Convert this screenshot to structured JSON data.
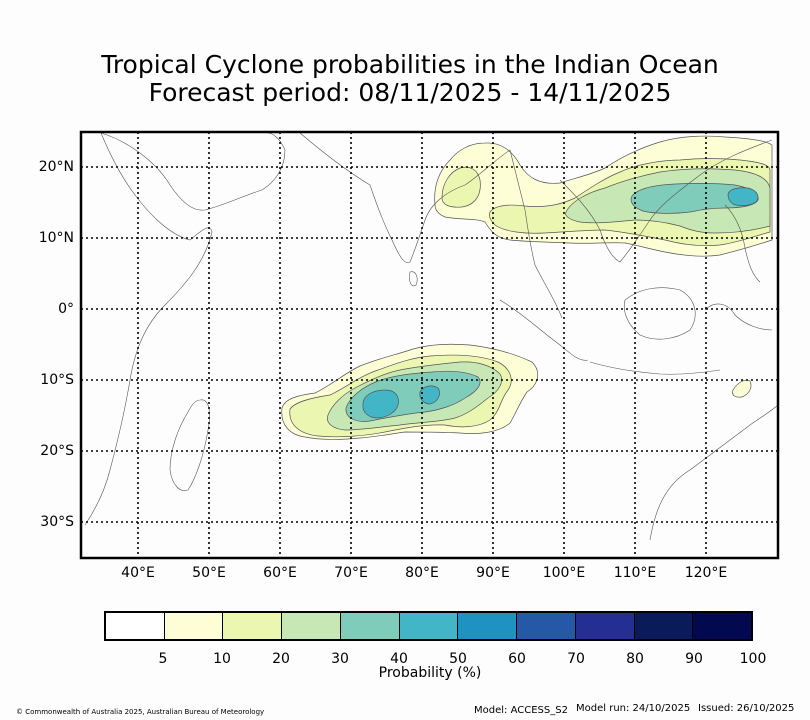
{
  "title": {
    "line1": "Tropical Cyclone probabilities in the Indian Ocean",
    "line2": "Forecast period: 08/11/2025 - 14/11/2025"
  },
  "map": {
    "lat_labels": [
      "20°N",
      "10°N",
      "0°",
      "10°S",
      "20°S",
      "30°S"
    ],
    "lon_labels": [
      "40°E",
      "50°E",
      "60°E",
      "70°E",
      "80°E",
      "90°E",
      "100°E",
      "110°E",
      "120°E"
    ]
  },
  "colorbar": {
    "colors": [
      "#ffffff",
      "#fdfdd6",
      "#ebf6b0",
      "#c7e8b4",
      "#80ccbb",
      "#42b5c7",
      "#1e92c1",
      "#2559a7",
      "#242e93",
      "#0a1b5a",
      "#03094f"
    ],
    "ticks": [
      "5",
      "10",
      "20",
      "30",
      "40",
      "50",
      "60",
      "70",
      "80",
      "90",
      "100"
    ],
    "label": "Probability (%)"
  },
  "footer": {
    "copyright": "© Commonwealth of Australia 2025, Australian Bureau of Meteorology",
    "model": "Model: ACCESS_S2",
    "model_run": "Model run: 24/10/2025",
    "issued": "Issued: 26/10/2025"
  }
}
